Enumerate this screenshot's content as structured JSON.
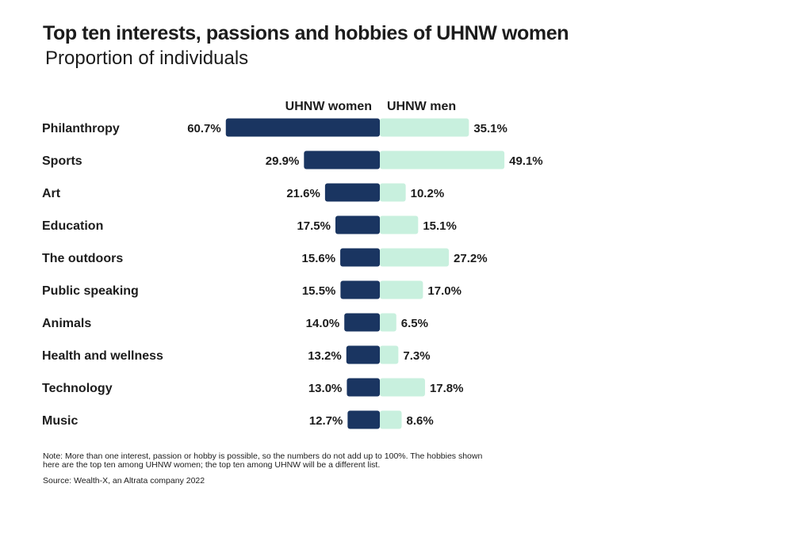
{
  "chart_data": {
    "type": "bar",
    "orientation": "horizontal-diverging",
    "title": "Top ten interests, passions and hobbies of UHNW women",
    "subtitle": "Proportion of individuals",
    "categories": [
      "Philanthropy",
      "Sports",
      "Art",
      "Education",
      "The outdoors",
      "Public speaking",
      "Animals",
      "Health and wellness",
      "Technology",
      "Music"
    ],
    "series": [
      {
        "name": "UHNW women",
        "color": "#1a3561",
        "values": [
          60.7,
          29.9,
          21.6,
          17.5,
          15.6,
          15.5,
          14.0,
          13.2,
          13.0,
          12.7
        ],
        "labels": [
          "60.7%",
          "29.9%",
          "21.6%",
          "17.5%",
          "15.6%",
          "15.5%",
          "14.0%",
          "13.2%",
          "13.0%",
          "12.7%"
        ]
      },
      {
        "name": "UHNW men",
        "color": "#c8f0de",
        "values": [
          35.1,
          49.1,
          10.2,
          15.1,
          27.2,
          17.0,
          6.5,
          7.3,
          17.8,
          8.6
        ],
        "labels": [
          "35.1%",
          "49.1%",
          "10.2%",
          "15.1%",
          "27.2%",
          "17.0%",
          "6.5%",
          "7.3%",
          "17.8%",
          "8.6%"
        ]
      }
    ],
    "legend_position": "top-center",
    "grid": false
  },
  "note": "Note: More than one interest, passion or hobby is possible, so the numbers do not add up to 100%. The hobbies shown here are the top ten among UHNW women; the top ten among UHNW will be a different list.",
  "source": "Source: Wealth-X, an Altrata company 2022"
}
